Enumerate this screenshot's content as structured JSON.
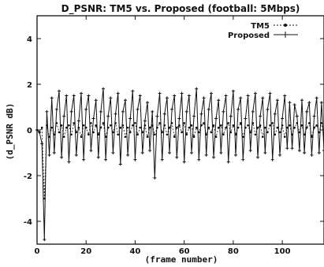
{
  "chart_data": {
    "type": "line",
    "title": "D_PSNR: TM5 vs. Proposed (football: 5Mbps)",
    "xlabel": "(frame number)",
    "ylabel": "(d_PSNR dB)",
    "xlim": [
      0,
      117
    ],
    "ylim": [
      -5,
      5
    ],
    "x_ticks": [
      0,
      20,
      40,
      60,
      80,
      100
    ],
    "y_ticks": [
      -4,
      -2,
      0,
      2,
      4
    ],
    "legend_position": "top-right",
    "grid": false,
    "series": [
      {
        "name": "TM5",
        "style": "dotted",
        "values": [
          0,
          -0.1,
          0.1,
          -3.0,
          0.2,
          -0.3,
          0.1,
          -0.2,
          0.3,
          -0.1,
          0.2,
          -0.3,
          0.1,
          0.2,
          -0.2,
          0.3,
          -0.1,
          0.1,
          -0.3,
          0.2,
          0.1,
          -0.2,
          0.3,
          -0.1,
          0.2,
          -0.2,
          0.1,
          0.3,
          -0.3,
          0.1,
          0.2,
          -0.1,
          0.3,
          -0.2,
          0.1,
          0.2,
          -0.3,
          0.1,
          -0.1,
          0.2,
          0.3,
          -0.2,
          0.1,
          -0.1,
          0.2,
          -0.3,
          0.1,
          0.2,
          -0.2,
          0.1,
          0.3,
          -0.1,
          0.2,
          -0.2,
          0.1,
          0.3,
          -0.3,
          0.1,
          0.2,
          -0.1,
          0.3,
          -0.2,
          0.1,
          0.2,
          -0.3,
          0.1,
          -0.1,
          0.2,
          0.3,
          -0.2,
          0.1,
          -0.1,
          0.2,
          -0.3,
          0.1,
          0.2,
          -0.2,
          0.1,
          0.3,
          -0.1,
          0.2,
          -0.2,
          0.1,
          0.3,
          -0.3,
          0.1,
          0.2,
          -0.1,
          0.3,
          -0.2,
          0.1,
          0.2,
          -0.3,
          0.1,
          -0.1,
          0.2,
          0.3,
          -0.2,
          0.1,
          -0.1,
          0.2,
          -0.3,
          0.1,
          0.2,
          -0.2,
          0.1,
          0.3,
          -0.1,
          0.2,
          -0.2,
          0.1,
          0.3,
          -0.3,
          0.1,
          0.2,
          -0.1,
          0.3,
          -0.2
        ]
      },
      {
        "name": "Proposed",
        "style": "solid-plus",
        "values": [
          0,
          -0.1,
          -0.6,
          -4.8,
          0.8,
          -1.1,
          1.4,
          -1.0,
          0.9,
          1.7,
          -1.2,
          0.6,
          1.5,
          -1.4,
          0.8,
          1.5,
          -1.1,
          0.4,
          1.6,
          -1.3,
          0.9,
          1.5,
          -0.9,
          0.5,
          1.3,
          -1.2,
          0.8,
          1.8,
          -1.3,
          0.6,
          1.4,
          -1.0,
          0.7,
          1.6,
          -1.5,
          0.8,
          1.3,
          -1.1,
          0.5,
          1.7,
          -1.3,
          0.9,
          1.5,
          -1.0,
          0.4,
          1.2,
          -0.9,
          0.8,
          -2.1,
          0.6,
          1.6,
          -1.3,
          0.7,
          1.4,
          -1.0,
          0.9,
          1.5,
          -1.2,
          0.5,
          1.6,
          -1.4,
          0.8,
          1.5,
          -1.0,
          0.6,
          1.8,
          -1.3,
          0.7,
          1.4,
          -1.1,
          0.9,
          1.6,
          -1.2,
          0.5,
          1.3,
          -1.0,
          0.8,
          1.5,
          -1.4,
          0.6,
          1.7,
          -1.1,
          0.9,
          1.4,
          -1.3,
          0.5,
          1.5,
          -0.9,
          0.8,
          1.6,
          -1.2,
          0.6,
          1.4,
          -1.0,
          0.9,
          1.6,
          -1.3,
          0.7,
          1.3,
          -1.1,
          0.5,
          1.5,
          -0.8,
          1.2,
          -0.8,
          1.1,
          0.6,
          -0.9,
          1.3,
          -1.0,
          0.8,
          1.2,
          -1.1,
          0.6,
          1.4,
          -1.0,
          1.2,
          -0.9
        ]
      }
    ]
  }
}
